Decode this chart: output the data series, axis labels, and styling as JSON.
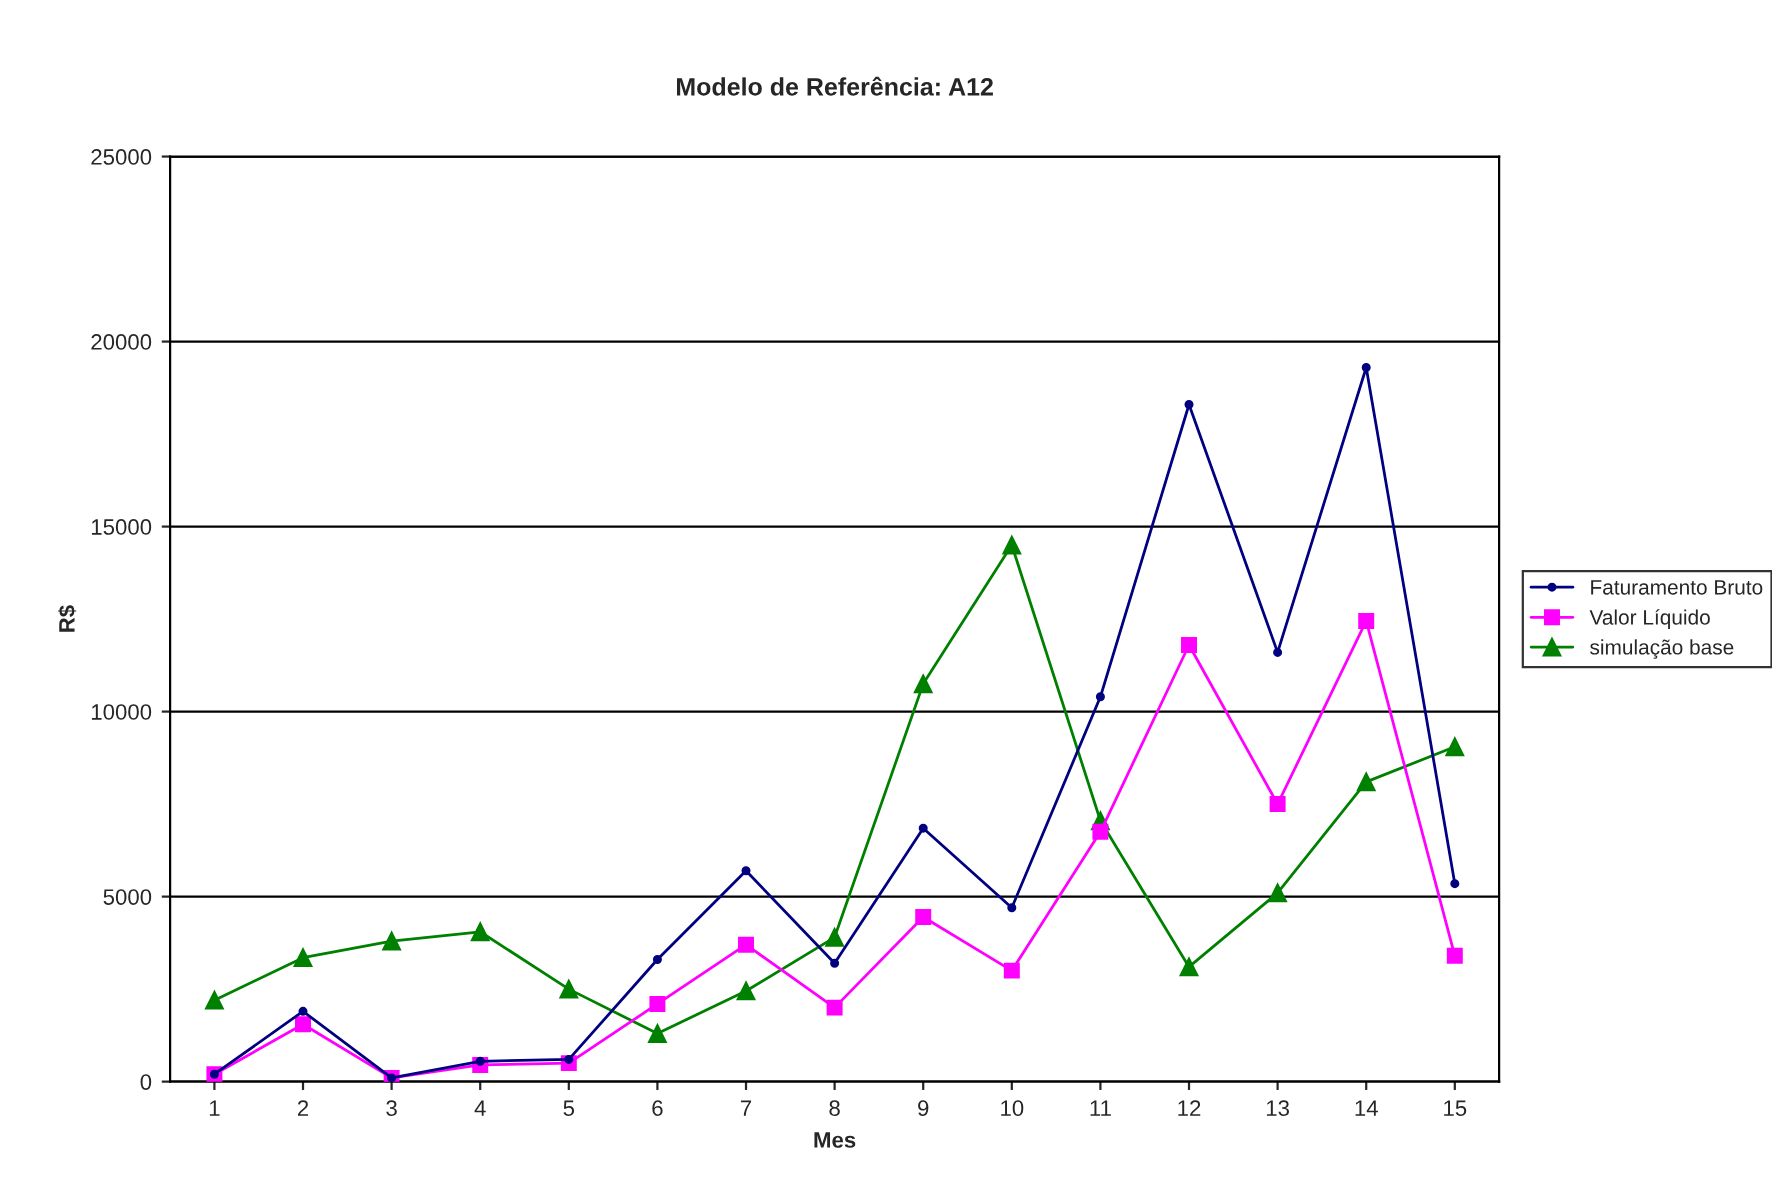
{
  "chart_data": {
    "type": "line",
    "title": "Modelo de Referência: A12",
    "xlabel": "Mes",
    "ylabel": "R$",
    "categories": [
      "1",
      "2",
      "3",
      "4",
      "5",
      "6",
      "7",
      "8",
      "9",
      "10",
      "11",
      "12",
      "13",
      "14",
      "15"
    ],
    "series": [
      {
        "name": "Faturamento Bruto",
        "color": "#000080",
        "marker": "circle",
        "values": [
          200,
          1900,
          100,
          550,
          600,
          3300,
          5700,
          3200,
          6850,
          4700,
          10400,
          18300,
          11600,
          19300,
          5350
        ]
      },
      {
        "name": "Valor Líquido",
        "color": "#ff00ff",
        "marker": "square",
        "values": [
          200,
          1550,
          100,
          450,
          500,
          2100,
          3700,
          2000,
          4450,
          3000,
          6750,
          11800,
          7500,
          12450,
          3400
        ]
      },
      {
        "name": "simulação base",
        "color": "#008000",
        "marker": "triangle",
        "values": [
          2200,
          3350,
          3800,
          4050,
          2500,
          1300,
          2450,
          3900,
          10750,
          14500,
          7050,
          3100,
          5100,
          8100,
          9050
        ]
      }
    ],
    "ylim": [
      0,
      25000
    ],
    "yticks": [
      0,
      5000,
      10000,
      15000,
      20000,
      25000
    ],
    "grid": "y",
    "legend": "right"
  }
}
